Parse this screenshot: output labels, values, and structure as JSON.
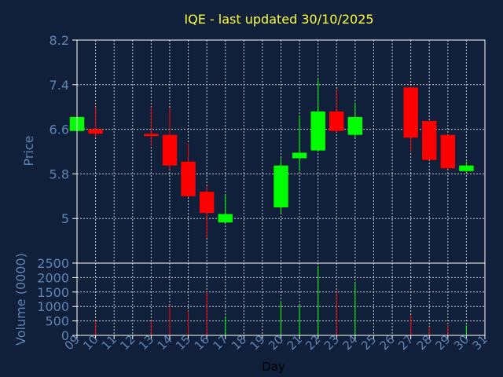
{
  "title": "IQE - last updated 30/10/2025",
  "colors": {
    "background": "#10203a",
    "up": "#00ff00",
    "down": "#ff0000",
    "grid": "#ffffff",
    "text": "#5e84b4",
    "title": "#ffff3c"
  },
  "chart_data": [
    {
      "type": "candlestick",
      "ylabel": "Price",
      "ylim": [
        4.2,
        8.2
      ],
      "yticks": [
        "8.2",
        "7.4",
        "6.6",
        "5.8",
        "5"
      ],
      "grid": true,
      "candles": [
        {
          "day": 9,
          "open": 6.57,
          "high": 6.82,
          "low": 6.57,
          "close": 6.82
        },
        {
          "day": 10,
          "open": 6.6,
          "high": 7.0,
          "low": 6.45,
          "close": 6.52
        },
        {
          "day": 13,
          "open": 6.52,
          "high": 7.0,
          "low": 6.3,
          "close": 6.48
        },
        {
          "day": 14,
          "open": 6.5,
          "high": 6.98,
          "low": 5.88,
          "close": 5.95
        },
        {
          "day": 15,
          "open": 6.02,
          "high": 6.35,
          "low": 5.38,
          "close": 5.4
        },
        {
          "day": 16,
          "open": 5.48,
          "high": 5.58,
          "low": 4.65,
          "close": 5.1
        },
        {
          "day": 17,
          "open": 4.93,
          "high": 5.42,
          "low": 4.93,
          "close": 5.08
        },
        {
          "day": 20,
          "open": 5.2,
          "high": 6.08,
          "low": 5.1,
          "close": 5.95
        },
        {
          "day": 21,
          "open": 6.08,
          "high": 6.85,
          "low": 5.85,
          "close": 6.18
        },
        {
          "day": 22,
          "open": 6.22,
          "high": 7.5,
          "low": 6.22,
          "close": 6.92
        },
        {
          "day": 23,
          "open": 6.92,
          "high": 7.32,
          "low": 6.55,
          "close": 6.57
        },
        {
          "day": 24,
          "open": 6.5,
          "high": 7.08,
          "low": 6.45,
          "close": 6.82
        },
        {
          "day": 27,
          "open": 7.35,
          "high": 7.35,
          "low": 6.2,
          "close": 6.45
        },
        {
          "day": 28,
          "open": 6.75,
          "high": 6.75,
          "low": 6.05,
          "close": 6.05
        },
        {
          "day": 29,
          "open": 6.5,
          "high": 6.5,
          "low": 5.9,
          "close": 5.9
        },
        {
          "day": 30,
          "open": 5.85,
          "high": 6.02,
          "low": 5.82,
          "close": 5.95
        }
      ]
    },
    {
      "type": "bar",
      "ylabel": "Volume (0000)",
      "xlabel": "Day",
      "ylim": [
        0,
        2500
      ],
      "yticks": [
        "2500",
        "2000",
        "1500",
        "1000",
        "500",
        "0"
      ],
      "xticks": [
        "09",
        "10",
        "11",
        "12",
        "13",
        "14",
        "15",
        "16",
        "17",
        "18",
        "19",
        "20",
        "21",
        "22",
        "23",
        "24",
        "25",
        "26",
        "27",
        "28",
        "29",
        "30",
        "31"
      ],
      "grid": true,
      "bars": [
        {
          "day": 9,
          "value": 150
        },
        {
          "day": 10,
          "value": 500
        },
        {
          "day": 13,
          "value": 500
        },
        {
          "day": 14,
          "value": 1000
        },
        {
          "day": 15,
          "value": 850
        },
        {
          "day": 16,
          "value": 1500
        },
        {
          "day": 17,
          "value": 650
        },
        {
          "day": 20,
          "value": 1200
        },
        {
          "day": 21,
          "value": 1050
        },
        {
          "day": 22,
          "value": 2400
        },
        {
          "day": 23,
          "value": 1500
        },
        {
          "day": 24,
          "value": 1850
        },
        {
          "day": 27,
          "value": 700
        },
        {
          "day": 28,
          "value": 300
        },
        {
          "day": 29,
          "value": 350
        },
        {
          "day": 30,
          "value": 350
        }
      ]
    }
  ]
}
